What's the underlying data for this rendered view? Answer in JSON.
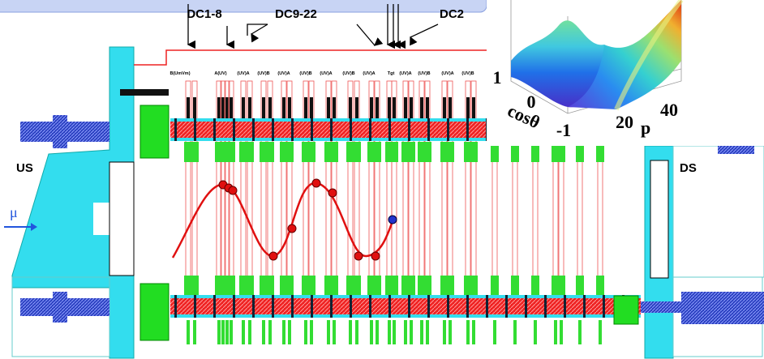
{
  "labels": {
    "top": [
      "DC1-8",
      "DC9-22",
      "DC2"
    ],
    "upstream": "US",
    "downstream": "DS",
    "beam": "μ",
    "planes": [
      "B(UmVm)",
      "A(UV)",
      "(UV)A",
      "(UV)B",
      "(UV)A",
      "(UV)B",
      "(UV)A",
      "(UV)B",
      "(UV)A",
      "Tgt",
      "(UV)A",
      "(UV)B",
      "(UV)A",
      "(UV)B"
    ]
  },
  "inset": {
    "x_axis_label": "cosθ",
    "y_axis_label": "p",
    "x_ticks": [
      "1",
      "0",
      "-1"
    ],
    "y_ticks": [
      "20",
      "40"
    ]
  }
}
